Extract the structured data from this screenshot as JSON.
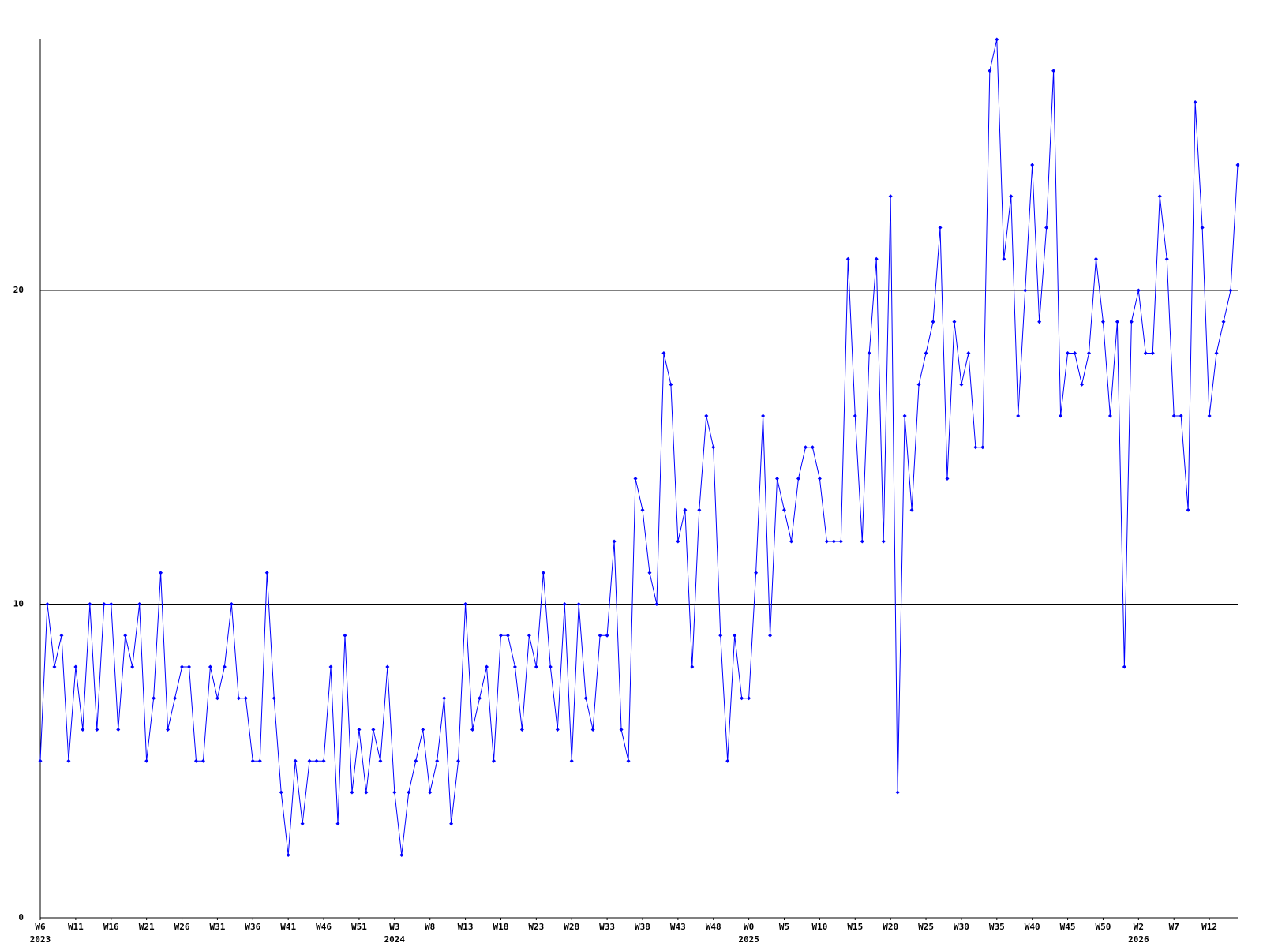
{
  "chart_data": {
    "type": "line",
    "categories": [
      "W6",
      null,
      null,
      null,
      null,
      "W11",
      null,
      null,
      null,
      null,
      "W16",
      null,
      null,
      null,
      null,
      "W21",
      null,
      null,
      null,
      null,
      "W26",
      null,
      null,
      null,
      null,
      "W31",
      null,
      null,
      null,
      null,
      "W36",
      null,
      null,
      null,
      null,
      "W41",
      null,
      null,
      null,
      null,
      "W46",
      null,
      null,
      null,
      null,
      "W51",
      null,
      null,
      null,
      null,
      "W3",
      null,
      null,
      null,
      null,
      "W8",
      null,
      null,
      null,
      null,
      "W13",
      null,
      null,
      null,
      null,
      "W18",
      null,
      null,
      null,
      null,
      "W23",
      null,
      null,
      null,
      null,
      "W28",
      null,
      null,
      null,
      null,
      "W33",
      null,
      null,
      null,
      null,
      "W38",
      null,
      null,
      null,
      null,
      "W43",
      null,
      null,
      null,
      null,
      "W48",
      null,
      null,
      null,
      null,
      "W0",
      null,
      null,
      null,
      null,
      "W5",
      null,
      null,
      null,
      null,
      "W10",
      null,
      null,
      null,
      null,
      "W15",
      null,
      null,
      null,
      null,
      "W20",
      null,
      null,
      null,
      null,
      "W25",
      null,
      null,
      null,
      null,
      "W30",
      null,
      null,
      null,
      null,
      "W35",
      null,
      null,
      null,
      null,
      "W40",
      null,
      null,
      null,
      null,
      "W45",
      null,
      null,
      null,
      null,
      "W50",
      null,
      null,
      null,
      null,
      "W2",
      null,
      null,
      null,
      null,
      "W7",
      null,
      null,
      null,
      null,
      "W12",
      null,
      null,
      null,
      null
    ],
    "category_years": [
      "2023",
      null,
      null,
      null,
      null,
      null,
      null,
      null,
      null,
      null,
      null,
      null,
      null,
      null,
      null,
      null,
      null,
      null,
      null,
      null,
      null,
      null,
      null,
      null,
      null,
      null,
      null,
      null,
      null,
      null,
      null,
      null,
      null,
      null,
      null,
      null,
      null,
      null,
      null,
      null,
      null,
      null,
      null,
      null,
      null,
      null,
      null,
      null,
      null,
      null,
      "2024",
      null,
      null,
      null,
      null,
      null,
      null,
      null,
      null,
      null,
      null,
      null,
      null,
      null,
      null,
      null,
      null,
      null,
      null,
      null,
      null,
      null,
      null,
      null,
      null,
      null,
      null,
      null,
      null,
      null,
      null,
      null,
      null,
      null,
      null,
      null,
      null,
      null,
      null,
      null,
      null,
      null,
      null,
      null,
      null,
      null,
      null,
      null,
      null,
      null,
      "2025",
      null,
      null,
      null,
      null,
      null,
      null,
      null,
      null,
      null,
      null,
      null,
      null,
      null,
      null,
      null,
      null,
      null,
      null,
      null,
      null,
      null,
      null,
      null,
      null,
      null,
      null,
      null,
      null,
      null,
      null,
      null,
      null,
      null,
      null,
      null,
      null,
      null,
      null,
      null,
      null,
      null,
      null,
      null,
      null,
      null,
      null,
      null,
      null,
      null,
      null,
      null,
      null,
      null,
      null,
      "2026",
      null,
      null,
      null,
      null,
      null,
      null,
      null,
      null,
      null,
      null,
      null,
      null,
      null,
      null
    ],
    "series": [
      {
        "color": "#0000ff",
        "values": [
          5,
          10,
          8,
          9,
          5,
          8,
          6,
          10,
          6,
          10,
          10,
          6,
          9,
          8,
          10,
          5,
          7,
          11,
          6,
          7,
          8,
          8,
          5,
          5,
          8,
          7,
          8,
          10,
          7,
          7,
          5,
          5,
          11,
          7,
          4,
          2,
          5,
          3,
          5,
          5,
          5,
          8,
          3,
          9,
          4,
          6,
          4,
          6,
          5,
          8,
          4,
          2,
          4,
          5,
          6,
          4,
          5,
          7,
          3,
          5,
          10,
          6,
          7,
          8,
          5,
          9,
          9,
          8,
          6,
          9,
          8,
          11,
          8,
          6,
          10,
          5,
          10,
          7,
          6,
          9,
          9,
          12,
          6,
          5,
          14,
          13,
          11,
          10,
          18,
          17,
          12,
          13,
          8,
          13,
          16,
          15,
          9,
          5,
          9,
          7,
          7,
          11,
          16,
          9,
          14,
          13,
          12,
          14,
          15,
          15,
          14,
          12,
          12,
          12,
          21,
          16,
          12,
          18,
          21,
          12,
          23,
          4,
          16,
          13,
          17,
          18,
          19,
          22,
          14,
          19,
          17,
          18,
          15,
          15,
          27,
          28,
          21,
          23,
          16,
          20,
          24,
          19,
          22,
          27,
          16,
          18,
          18,
          17,
          18,
          21,
          19,
          16,
          19,
          8,
          19,
          20,
          18,
          18,
          23,
          21,
          16,
          16,
          13,
          26,
          22,
          16,
          18,
          19,
          20,
          24
        ]
      }
    ],
    "ylim": [
      0,
      28
    ],
    "yticks": [
      0,
      10,
      20
    ],
    "grid": true
  }
}
